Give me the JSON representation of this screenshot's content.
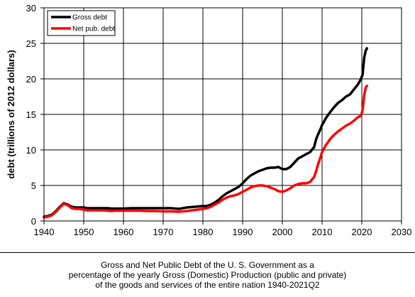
{
  "chart_data": {
    "type": "line",
    "xlabel": "",
    "ylabel": "debt (trillions of  2012 dollars)",
    "xlim": [
      1940,
      2030
    ],
    "ylim": [
      0,
      30
    ],
    "xticks": [
      1940,
      1950,
      1960,
      1970,
      1980,
      1990,
      2000,
      2010,
      2020,
      2030
    ],
    "yticks": [
      0,
      5,
      10,
      15,
      20,
      25,
      30
    ],
    "grid": true,
    "legend_position": "top-left",
    "series": [
      {
        "name": "Gross debt",
        "color": "#000000",
        "x": [
          1940,
          1941,
          1942,
          1943,
          1944,
          1945,
          1946,
          1947,
          1948,
          1949,
          1950,
          1951,
          1952,
          1953,
          1954,
          1955,
          1956,
          1957,
          1958,
          1959,
          1960,
          1962,
          1964,
          1966,
          1968,
          1970,
          1972,
          1974,
          1976,
          1978,
          1980,
          1981,
          1982,
          1983,
          1984,
          1985,
          1986,
          1987,
          1988,
          1989,
          1990,
          1991,
          1992,
          1993,
          1994,
          1995,
          1996,
          1997,
          1998,
          1999,
          2000,
          2001,
          2002,
          2003,
          2004,
          2005,
          2006,
          2007,
          2008,
          2008.5,
          2009,
          2009.5,
          2010,
          2011,
          2012,
          2013,
          2014,
          2015,
          2016,
          2017,
          2018,
          2019,
          2019.8,
          2020.2,
          2020.6,
          2021,
          2021.3
        ],
        "values": [
          0.6,
          0.7,
          0.9,
          1.4,
          2.0,
          2.5,
          2.3,
          2.0,
          1.9,
          1.9,
          1.9,
          1.8,
          1.8,
          1.8,
          1.8,
          1.8,
          1.8,
          1.75,
          1.75,
          1.75,
          1.75,
          1.8,
          1.8,
          1.8,
          1.8,
          1.8,
          1.8,
          1.7,
          1.9,
          2.0,
          2.1,
          2.1,
          2.3,
          2.6,
          3.0,
          3.5,
          3.9,
          4.2,
          4.5,
          4.8,
          5.3,
          5.9,
          6.4,
          6.7,
          7.0,
          7.2,
          7.4,
          7.5,
          7.5,
          7.6,
          7.3,
          7.3,
          7.6,
          8.2,
          8.8,
          9.1,
          9.4,
          9.7,
          10.4,
          11.5,
          12.2,
          12.8,
          13.5,
          14.5,
          15.3,
          16.0,
          16.6,
          17.0,
          17.5,
          17.8,
          18.5,
          19.2,
          20.0,
          20.6,
          23.0,
          24.0,
          24.3
        ]
      },
      {
        "name": "Net pub. debt",
        "color": "#ff0000",
        "x": [
          1940,
          1941,
          1942,
          1943,
          1944,
          1945,
          1946,
          1947,
          1948,
          1949,
          1950,
          1951,
          1952,
          1953,
          1954,
          1955,
          1956,
          1957,
          1958,
          1959,
          1960,
          1962,
          1964,
          1966,
          1968,
          1970,
          1972,
          1974,
          1976,
          1978,
          1980,
          1981,
          1982,
          1983,
          1984,
          1985,
          1986,
          1987,
          1988,
          1989,
          1990,
          1991,
          1992,
          1993,
          1994,
          1995,
          1996,
          1997,
          1998,
          1999,
          2000,
          2001,
          2002,
          2003,
          2004,
          2005,
          2006,
          2007,
          2008,
          2008.5,
          2009,
          2009.5,
          2010,
          2011,
          2012,
          2013,
          2014,
          2015,
          2016,
          2017,
          2018,
          2019,
          2019.8,
          2020.2,
          2020.6,
          2021,
          2021.3
        ],
        "values": [
          0.5,
          0.6,
          0.8,
          1.3,
          1.9,
          2.4,
          2.2,
          1.8,
          1.7,
          1.7,
          1.6,
          1.5,
          1.5,
          1.5,
          1.5,
          1.5,
          1.45,
          1.4,
          1.45,
          1.45,
          1.45,
          1.45,
          1.45,
          1.4,
          1.4,
          1.35,
          1.35,
          1.3,
          1.4,
          1.55,
          1.7,
          1.8,
          2.0,
          2.3,
          2.6,
          3.0,
          3.3,
          3.5,
          3.6,
          3.8,
          4.1,
          4.4,
          4.7,
          4.9,
          5.0,
          5.0,
          4.9,
          4.7,
          4.5,
          4.2,
          4.1,
          4.3,
          4.6,
          5.0,
          5.2,
          5.3,
          5.3,
          5.5,
          6.2,
          7.0,
          8.0,
          8.8,
          9.7,
          10.7,
          11.5,
          12.1,
          12.6,
          13.0,
          13.4,
          13.7,
          14.1,
          14.6,
          14.8,
          15.6,
          17.7,
          18.8,
          19.0
        ]
      }
    ]
  },
  "caption": {
    "line1": "Gross and Net Public Debt of the U. S. Government as a",
    "line2": "percentage of the yearly Gross (Domestic) Production (public and private)",
    "line3": "of the goods and services of the entire nation 1940-2021Q2"
  }
}
